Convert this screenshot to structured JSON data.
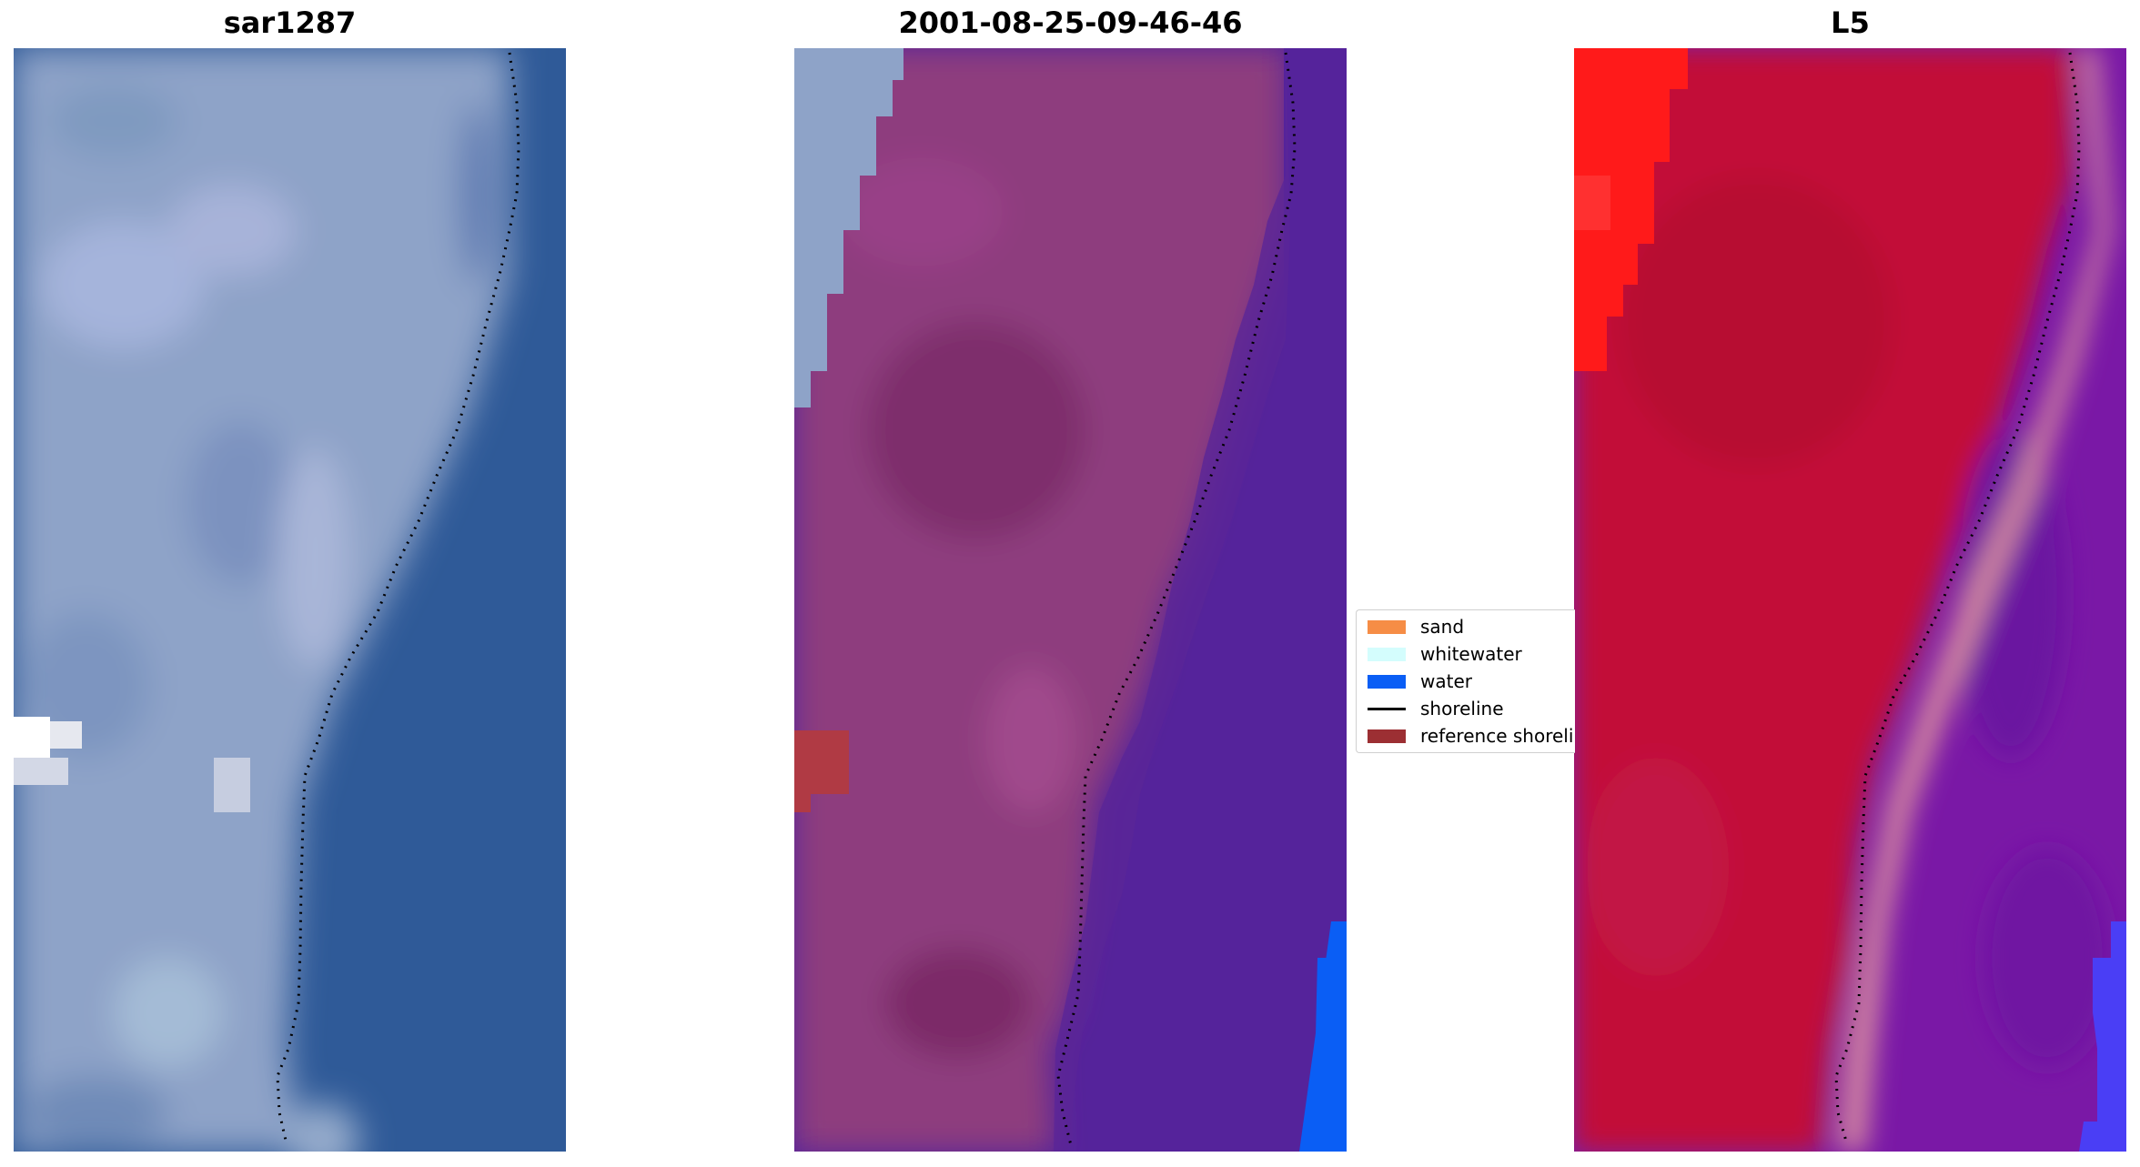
{
  "panels": [
    {
      "title": "sar1287"
    },
    {
      "title": "2001-08-25-09-46-46"
    },
    {
      "title": "L5"
    }
  ],
  "legend": {
    "items": [
      {
        "label": "sand",
        "kind": "patch",
        "color": "#f68d46"
      },
      {
        "label": "whitewater",
        "kind": "patch",
        "color": "#d4fdfd"
      },
      {
        "label": "water",
        "kind": "patch",
        "color": "#0a5ef5"
      },
      {
        "label": "shoreline",
        "kind": "line",
        "color": "#000000"
      },
      {
        "label": "reference shoreline",
        "kind": "patch",
        "color": "#9c2f33"
      }
    ]
  },
  "colors": {
    "panel1_land": "#8ea3c8",
    "panel1_water": "#2f5a98",
    "panel2_land": "#8e3c7e",
    "panel2_water": "#55239b",
    "panel2_water_class": "#0a5ef5",
    "panel3_sand_red": "#c21038",
    "panel3_water_purple": "#7a18a6",
    "panel3_bright_red": "#ff1a1a"
  }
}
